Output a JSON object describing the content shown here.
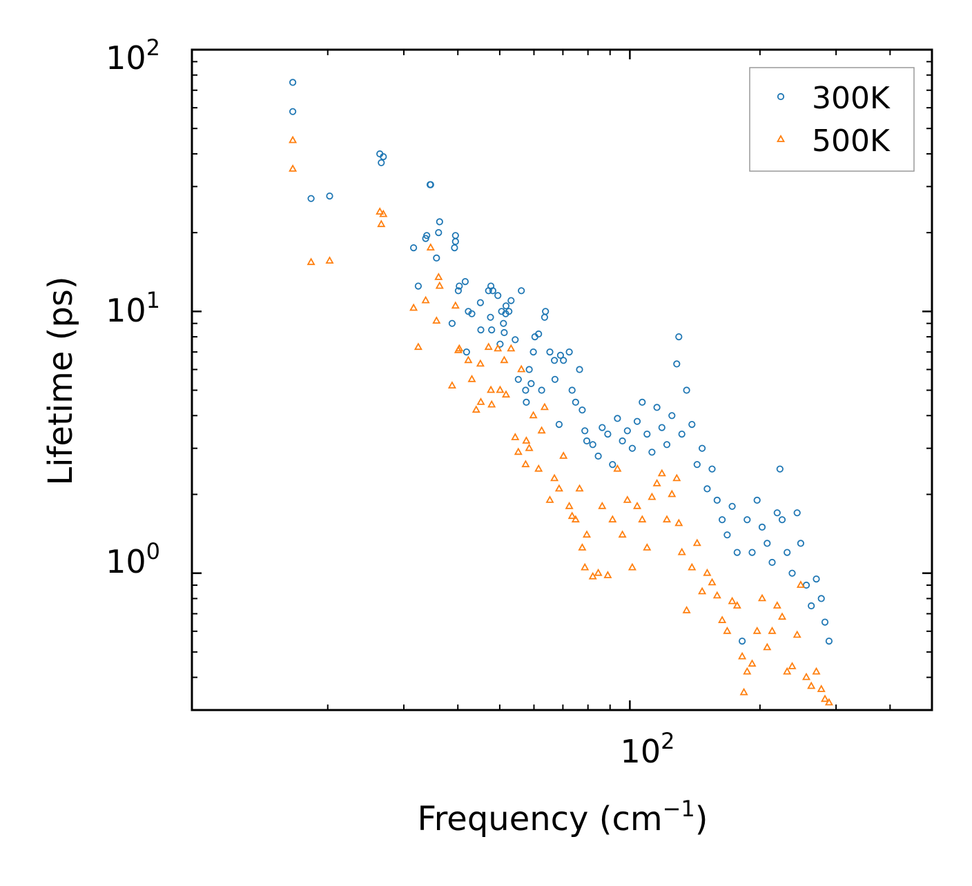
{
  "colors": {
    "series_300K": "#1f77b4",
    "series_500K": "#ff7f0e",
    "axes": "#000000",
    "legend_border": "#999999",
    "background": "#ffffff"
  },
  "chart_data": {
    "type": "scatter",
    "title": "",
    "xlabel": "Frequency (cm",
    "xlabel_sup": "−1",
    "xlabel_close": ")",
    "ylabel": "Lifetime (ps)",
    "xscale": "log",
    "yscale": "log",
    "xlim": [
      9.7,
      500
    ],
    "ylim": [
      0.3,
      100
    ],
    "x_ticks": [
      {
        "value": 100,
        "base": "10",
        "exp": "2"
      }
    ],
    "y_ticks": [
      {
        "value": 1,
        "base": "10",
        "exp": "0"
      },
      {
        "value": 10,
        "base": "10",
        "exp": "1"
      },
      {
        "value": 100,
        "base": "10",
        "exp": "2"
      }
    ],
    "legend": {
      "position": "top-right",
      "entries": [
        "300K",
        "500K"
      ]
    },
    "series": [
      {
        "name": "300K",
        "marker": "circle",
        "points": [
          [
            16.6,
            75
          ],
          [
            16.6,
            58
          ],
          [
            18.3,
            27
          ],
          [
            20.2,
            27.6
          ],
          [
            26.4,
            40
          ],
          [
            26.9,
            39
          ],
          [
            26.6,
            37
          ],
          [
            31.6,
            17.5
          ],
          [
            32.4,
            12.5
          ],
          [
            33.7,
            19
          ],
          [
            33.9,
            19.5
          ],
          [
            34.5,
            30.5
          ],
          [
            34.6,
            30.5
          ],
          [
            35.7,
            16
          ],
          [
            36.1,
            20
          ],
          [
            36.3,
            22
          ],
          [
            38.8,
            9
          ],
          [
            39.3,
            17.5
          ],
          [
            39.5,
            18.5
          ],
          [
            39.5,
            19.5
          ],
          [
            40.1,
            12
          ],
          [
            40.3,
            12.5
          ],
          [
            41.6,
            13
          ],
          [
            41.9,
            7
          ],
          [
            42.3,
            10
          ],
          [
            43.1,
            9.8
          ],
          [
            45.1,
            10.8
          ],
          [
            45.2,
            8.5
          ],
          [
            47.1,
            12
          ],
          [
            47.7,
            12.5
          ],
          [
            47.6,
            9.5
          ],
          [
            47.9,
            8.5
          ],
          [
            48.2,
            12
          ],
          [
            49.5,
            11.5
          ],
          [
            50.1,
            7.5
          ],
          [
            50.5,
            10
          ],
          [
            51,
            9
          ],
          [
            51.2,
            8.3
          ],
          [
            51.6,
            9.8
          ],
          [
            51.7,
            10.5
          ],
          [
            52.5,
            10
          ],
          [
            53.1,
            11
          ],
          [
            54.3,
            7.8
          ],
          [
            55.2,
            5.5
          ],
          [
            56.1,
            12
          ],
          [
            57.4,
            5
          ],
          [
            57.6,
            4.5
          ],
          [
            58.5,
            6
          ],
          [
            59.1,
            5.3
          ],
          [
            59.8,
            7
          ],
          [
            60.3,
            8
          ],
          [
            61.5,
            8.2
          ],
          [
            62.5,
            5
          ],
          [
            63.5,
            9.5
          ],
          [
            63.8,
            10
          ],
          [
            65.3,
            7
          ],
          [
            66.9,
            6.5
          ],
          [
            67.1,
            5.5
          ],
          [
            68.6,
            3.7
          ],
          [
            69.1,
            6.8
          ],
          [
            70.2,
            6.5
          ],
          [
            72.4,
            7
          ],
          [
            73.5,
            5
          ],
          [
            74.9,
            4.5
          ],
          [
            76.5,
            6
          ],
          [
            77.6,
            4.2
          ],
          [
            78.7,
            3.5
          ],
          [
            79.5,
            3.2
          ],
          [
            82.1,
            3.1
          ],
          [
            84.5,
            2.8
          ],
          [
            86.3,
            3.6
          ],
          [
            88.9,
            3.4
          ],
          [
            91.2,
            2.6
          ],
          [
            93.6,
            3.9
          ],
          [
            96.1,
            3.2
          ],
          [
            98.7,
            3.5
          ],
          [
            101.3,
            3.0
          ],
          [
            104,
            3.8
          ],
          [
            106.8,
            4.5
          ],
          [
            109.6,
            3.4
          ],
          [
            112.5,
            2.9
          ],
          [
            115.5,
            4.3
          ],
          [
            118.6,
            3.6
          ],
          [
            121.8,
            3.1
          ],
          [
            125.1,
            4.0
          ],
          [
            128.4,
            6.3
          ],
          [
            129.8,
            8.0
          ],
          [
            131.9,
            3.4
          ],
          [
            135.3,
            5.0
          ],
          [
            139.2,
            3.7
          ],
          [
            143.1,
            2.6
          ],
          [
            147,
            3.0
          ],
          [
            151,
            2.1
          ],
          [
            155,
            2.5
          ],
          [
            159.2,
            1.9
          ],
          [
            163.5,
            1.6
          ],
          [
            168,
            1.4
          ],
          [
            172.5,
            1.8
          ],
          [
            177.1,
            1.2
          ],
          [
            181.9,
            0.55
          ],
          [
            186.8,
            1.6
          ],
          [
            191.8,
            1.2
          ],
          [
            197,
            1.9
          ],
          [
            202.3,
            1.5
          ],
          [
            207.8,
            1.3
          ],
          [
            213.4,
            1.1
          ],
          [
            219.2,
            1.7
          ],
          [
            222.5,
            2.5
          ],
          [
            225.1,
            1.6
          ],
          [
            231.1,
            1.2
          ],
          [
            237.4,
            1.0
          ],
          [
            243.8,
            1.7
          ],
          [
            248.5,
            1.3
          ],
          [
            256,
            0.9
          ],
          [
            262.9,
            0.75
          ],
          [
            270,
            0.95
          ],
          [
            277.3,
            0.8
          ],
          [
            282.8,
            0.65
          ],
          [
            289,
            0.55
          ]
        ]
      },
      {
        "name": "500K",
        "marker": "triangle",
        "points": [
          [
            16.6,
            45
          ],
          [
            16.6,
            35
          ],
          [
            18.3,
            15.4
          ],
          [
            20.2,
            15.6
          ],
          [
            26.4,
            24
          ],
          [
            26.6,
            21.5
          ],
          [
            26.9,
            23.5
          ],
          [
            31.6,
            10.3
          ],
          [
            32.4,
            7.3
          ],
          [
            33.7,
            11
          ],
          [
            34.6,
            17.5
          ],
          [
            35.7,
            9.2
          ],
          [
            36.1,
            13.5
          ],
          [
            36.3,
            12.5
          ],
          [
            38.8,
            5.2
          ],
          [
            39.5,
            10.5
          ],
          [
            40.1,
            7.1
          ],
          [
            40.3,
            7.2
          ],
          [
            42.3,
            6.5
          ],
          [
            43.1,
            5.5
          ],
          [
            44.1,
            4.2
          ],
          [
            45.1,
            6.3
          ],
          [
            45.2,
            4.5
          ],
          [
            47.1,
            7.3
          ],
          [
            47.7,
            5.0
          ],
          [
            47.9,
            4.4
          ],
          [
            49.5,
            7.2
          ],
          [
            50.1,
            5.0
          ],
          [
            51.2,
            6.5
          ],
          [
            51.7,
            4.8
          ],
          [
            53.1,
            7.2
          ],
          [
            54.3,
            3.3
          ],
          [
            55.2,
            2.9
          ],
          [
            56.1,
            6.0
          ],
          [
            57.4,
            2.6
          ],
          [
            57.6,
            3.2
          ],
          [
            58.5,
            3.0
          ],
          [
            59.8,
            4.0
          ],
          [
            61.5,
            2.5
          ],
          [
            62.5,
            3.5
          ],
          [
            63.5,
            4.3
          ],
          [
            65.3,
            1.9
          ],
          [
            66.9,
            2.3
          ],
          [
            68.6,
            2.1
          ],
          [
            70.2,
            2.8
          ],
          [
            72.4,
            1.8
          ],
          [
            73.5,
            1.65
          ],
          [
            74.9,
            1.6
          ],
          [
            76.5,
            2.1
          ],
          [
            77.6,
            1.25
          ],
          [
            78.7,
            1.05
          ],
          [
            79.5,
            1.4
          ],
          [
            82.1,
            0.97
          ],
          [
            84.5,
            1.0
          ],
          [
            86.3,
            1.8
          ],
          [
            88.9,
            0.98
          ],
          [
            91.2,
            1.6
          ],
          [
            93.6,
            2.5
          ],
          [
            96.1,
            1.4
          ],
          [
            98.7,
            1.9
          ],
          [
            101.3,
            1.05
          ],
          [
            104,
            1.8
          ],
          [
            106.8,
            1.6
          ],
          [
            109.6,
            1.25
          ],
          [
            112.5,
            1.95
          ],
          [
            115.5,
            2.2
          ],
          [
            118.6,
            2.4
          ],
          [
            121.8,
            1.6
          ],
          [
            125.1,
            2.0
          ],
          [
            128.4,
            2.3
          ],
          [
            129.8,
            1.55
          ],
          [
            131.9,
            1.2
          ],
          [
            135.3,
            0.72
          ],
          [
            139.2,
            1.05
          ],
          [
            143.1,
            1.3
          ],
          [
            147,
            0.85
          ],
          [
            151,
            1.0
          ],
          [
            155,
            0.92
          ],
          [
            159.2,
            0.82
          ],
          [
            163.5,
            0.66
          ],
          [
            168,
            0.6
          ],
          [
            172.5,
            0.78
          ],
          [
            177.1,
            0.75
          ],
          [
            181.9,
            0.48
          ],
          [
            183.6,
            0.35
          ],
          [
            186.8,
            0.42
          ],
          [
            191.8,
            0.45
          ],
          [
            197,
            0.6
          ],
          [
            202.3,
            0.8
          ],
          [
            207.8,
            0.52
          ],
          [
            213.4,
            0.6
          ],
          [
            219.2,
            0.75
          ],
          [
            225.1,
            0.68
          ],
          [
            231.1,
            0.42
          ],
          [
            237.4,
            0.44
          ],
          [
            243.8,
            0.58
          ],
          [
            248.5,
            0.9
          ],
          [
            256,
            0.4
          ],
          [
            262.9,
            0.37
          ],
          [
            270,
            0.42
          ],
          [
            277.3,
            0.36
          ],
          [
            282.8,
            0.33
          ],
          [
            289,
            0.32
          ]
        ]
      }
    ]
  }
}
